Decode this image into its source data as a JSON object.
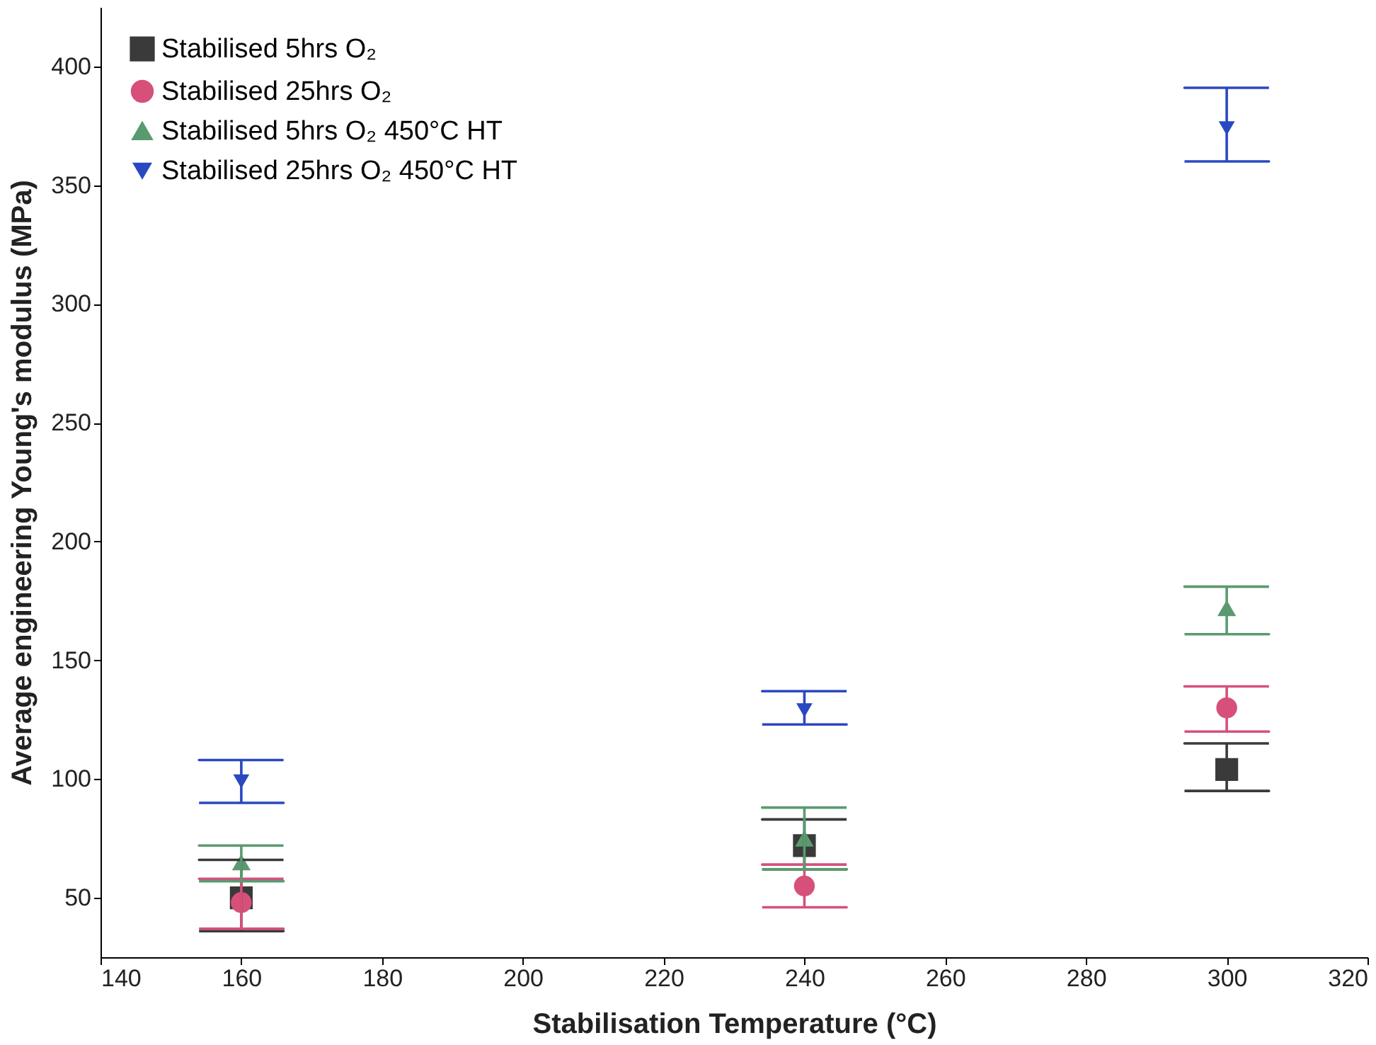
{
  "chart_data": {
    "type": "scatter",
    "xlabel": "Stabilisation Temperature (°C)",
    "ylabel": "Average engineering Young's modulus (MPa)",
    "x": [
      160,
      240,
      300
    ],
    "series": [
      {
        "name": "Stabilised 5hrs O₂",
        "color": "#3a3a3a",
        "marker": "square",
        "values": [
          50,
          72,
          104
        ],
        "errors": [
          [
            36,
            66
          ],
          [
            62,
            83
          ],
          [
            95,
            115
          ]
        ]
      },
      {
        "name": "Stabilised 25hrs O₂",
        "color": "#d6507a",
        "marker": "circle",
        "values": [
          48,
          55,
          130
        ],
        "errors": [
          [
            37,
            58
          ],
          [
            46,
            64
          ],
          [
            120,
            139
          ]
        ]
      },
      {
        "name": "Stabilised 5hrs O₂ 450°C HT",
        "color": "#5a9a70",
        "marker": "triangle",
        "values": [
          65,
          75,
          172
        ],
        "errors": [
          [
            57,
            72
          ],
          [
            62,
            88
          ],
          [
            161,
            181
          ]
        ]
      },
      {
        "name": "Stabilised 25hrs O₂ 450°C HT",
        "color": "#2a48c0",
        "marker": "triangle-down",
        "values": [
          99,
          129,
          374
        ],
        "errors": [
          [
            90,
            108
          ],
          [
            123,
            137
          ],
          [
            360,
            391
          ]
        ]
      }
    ],
    "xlim": [
      140,
      320
    ],
    "xticks": [
      140,
      160,
      180,
      200,
      220,
      240,
      260,
      280,
      300,
      320
    ],
    "ylim": [
      25,
      425
    ],
    "yticks": [
      50,
      100,
      150,
      200,
      250,
      300,
      350,
      400
    ],
    "grid": false,
    "legend": "top left"
  }
}
